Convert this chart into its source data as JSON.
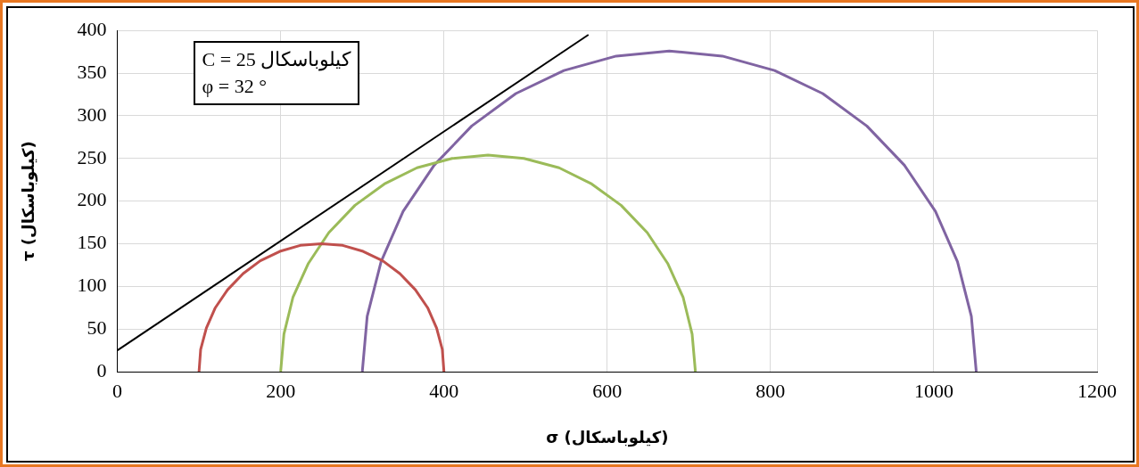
{
  "chart_data": {
    "type": "line",
    "xlabel": "σ (كيلوباسكال)",
    "ylabel": "τ (كيلوباسكال)",
    "annotations": [
      "C = 25 كيلوباسكال",
      "φ = 32 °"
    ],
    "xlim": [
      0,
      1200
    ],
    "xticks": [
      0,
      200,
      400,
      600,
      800,
      1000,
      1200
    ],
    "ylim": [
      0,
      400
    ],
    "yticks": [
      0,
      50,
      100,
      150,
      200,
      250,
      300,
      350,
      400
    ],
    "grid": true,
    "legend": false,
    "marker": "none",
    "line_style": "solid",
    "series": [
      {
        "color": "#000000",
        "x": [
          0,
          577
        ],
        "values": [
          25,
          395
        ]
      },
      {
        "color": "#c0504d",
        "x": [
          100,
          102,
          109,
          120,
          135,
          154,
          175,
          199,
          224,
          250,
          276,
          301,
          325,
          346,
          365,
          380,
          391,
          398,
          400
        ],
        "values": [
          0,
          26,
          51,
          75,
          96,
          115,
          130,
          141,
          148,
          150,
          148,
          141,
          130,
          115,
          96,
          75,
          51,
          26,
          0
        ]
      },
      {
        "color": "#9bbb59",
        "x": [
          200,
          204,
          215,
          234,
          259,
          291,
          327,
          367,
          410,
          454,
          498,
          541,
          581,
          617,
          649,
          674,
          693,
          704,
          708
        ],
        "values": [
          0,
          44,
          87,
          127,
          163,
          195,
          220,
          239,
          250,
          254,
          250,
          239,
          220,
          195,
          163,
          127,
          87,
          44,
          0
        ]
      },
      {
        "color": "#8064a2",
        "x": [
          300,
          306,
          323,
          350,
          388,
          434,
          488,
          547,
          611,
          676,
          741,
          805,
          864,
          918,
          964,
          1002,
          1029,
          1046,
          1052
        ],
        "values": [
          0,
          65,
          129,
          188,
          242,
          288,
          326,
          353,
          370,
          376,
          370,
          353,
          326,
          288,
          242,
          188,
          129,
          65,
          0
        ]
      }
    ]
  }
}
